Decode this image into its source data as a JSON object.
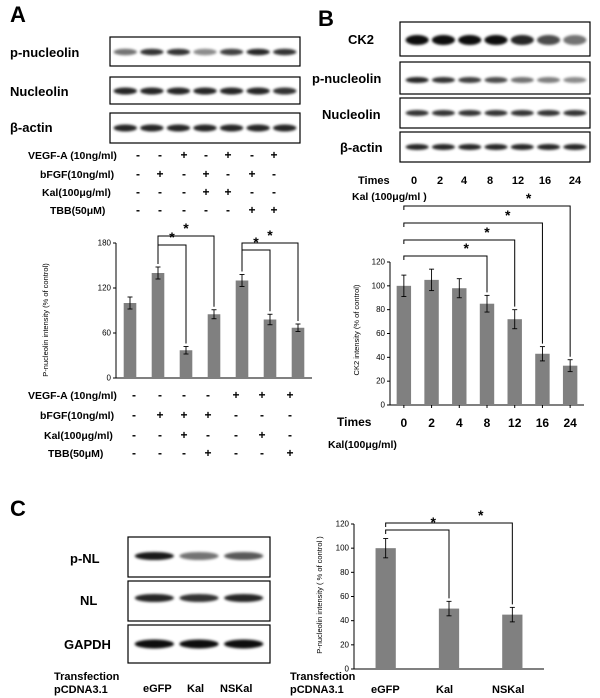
{
  "panels": {
    "A": {
      "letter": "A",
      "blot_labels": [
        "p-nucleolin",
        "Nucleolin",
        "β-actin"
      ],
      "treatment_rows": [
        {
          "label": "VEGF-A (10ng/ml)",
          "signs": [
            "-",
            "-",
            "+",
            "-",
            "+",
            "-",
            "+"
          ]
        },
        {
          "label": "bFGF(10ng/ml)",
          "signs": [
            "-",
            "+",
            "-",
            "+",
            "-",
            "+",
            "-"
          ]
        },
        {
          "label": "Kal(100μg/ml)",
          "signs": [
            "-",
            "-",
            "-",
            "+",
            "+",
            "-",
            "-"
          ]
        },
        {
          "label": "TBB(50μM)",
          "signs": [
            "-",
            "-",
            "-",
            "-",
            "-",
            "+",
            "+"
          ]
        }
      ],
      "bottom_rows": [
        {
          "label": "VEGF-A (10ng/ml)",
          "signs": [
            "-",
            "-",
            "-",
            "-",
            "+",
            "+",
            "+"
          ]
        },
        {
          "label": "bFGF(10ng/ml)",
          "signs": [
            "-",
            "+",
            "+",
            "+",
            "-",
            "-",
            "-"
          ]
        },
        {
          "label": "Kal(100μg/ml)",
          "signs": [
            "-",
            "-",
            "+",
            "-",
            "-",
            "+",
            "-"
          ]
        },
        {
          "label": "TBB(50μM)",
          "signs": [
            "-",
            "-",
            "-",
            "+",
            "-",
            "-",
            "+"
          ]
        }
      ]
    },
    "B": {
      "letter": "B",
      "blot_labels": [
        "CK2",
        "p-nucleolin",
        "Nucleolin",
        "β-actin"
      ],
      "times_label": "Times",
      "times": [
        "0",
        "2",
        "4",
        "8",
        "12",
        "16",
        "24"
      ],
      "kal_label": "Kal (100μg/ml )",
      "bottom_times_label": "Times",
      "bottom_kal_label": "Kal(100μg/ml)"
    },
    "C": {
      "letter": "C",
      "blot_labels": [
        "p-NL",
        "NL",
        "GAPDH"
      ],
      "transfection_label": "Transfection",
      "vector_label": "pCDNA3.1",
      "groups": [
        "eGFP",
        "Kal",
        "NSKal"
      ],
      "chart_transfection_label": "Transfection",
      "chart_vector_label": "pCDNA3.1",
      "chart_groups": [
        "eGFP",
        "Kal",
        "NSKal"
      ]
    }
  },
  "chart_data": [
    {
      "id": "A",
      "type": "bar",
      "ylabel": "P-nucleolin intensity (% of control)",
      "ylim": [
        0,
        180
      ],
      "yticks": [
        0,
        60,
        120,
        180
      ],
      "values": [
        100,
        140,
        37,
        85,
        130,
        78,
        67
      ],
      "errors": [
        8,
        8,
        5,
        6,
        8,
        7,
        5
      ],
      "significance": [
        {
          "from": 1,
          "to": 2,
          "label": "*"
        },
        {
          "from": 1,
          "to": 3,
          "label": "*"
        },
        {
          "from": 4,
          "to": 5,
          "label": "*"
        },
        {
          "from": 4,
          "to": 6,
          "label": "*"
        }
      ]
    },
    {
      "id": "B",
      "type": "bar",
      "ylabel": "CK2 intensity (% of control)",
      "ylim": [
        0,
        120
      ],
      "yticks": [
        0,
        20,
        40,
        60,
        80,
        100,
        120
      ],
      "categories": [
        "0",
        "2",
        "4",
        "8",
        "12",
        "16",
        "24"
      ],
      "values": [
        100,
        105,
        98,
        85,
        72,
        43,
        33
      ],
      "errors": [
        9,
        9,
        8,
        7,
        8,
        6,
        5
      ],
      "significance": [
        {
          "from": 0,
          "to": 3,
          "label": "*"
        },
        {
          "from": 0,
          "to": 4,
          "label": "*"
        },
        {
          "from": 0,
          "to": 5,
          "label": "*"
        },
        {
          "from": 0,
          "to": 6,
          "label": "*"
        }
      ]
    },
    {
      "id": "C",
      "type": "bar",
      "ylabel": "P-nucleolin intensity ( % of control )",
      "ylim": [
        0,
        120
      ],
      "yticks": [
        0,
        20,
        40,
        60,
        80,
        100,
        120
      ],
      "categories": [
        "eGFP",
        "Kal",
        "NSKal"
      ],
      "values": [
        100,
        50,
        45
      ],
      "errors": [
        8,
        6,
        6
      ],
      "significance": [
        {
          "from": 0,
          "to": 1,
          "label": "*"
        },
        {
          "from": 0,
          "to": 2,
          "label": "*"
        }
      ]
    }
  ]
}
